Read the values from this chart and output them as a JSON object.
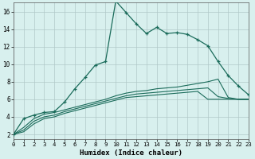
{
  "xlabel": "Humidex (Indice chaleur)",
  "bg_color": "#d8f0ee",
  "grid_color": "#b0c8c8",
  "line_color": "#1a6b5a",
  "x_ticks": [
    0,
    1,
    2,
    3,
    4,
    5,
    6,
    7,
    8,
    9,
    10,
    11,
    12,
    13,
    14,
    15,
    16,
    17,
    18,
    19,
    20,
    21,
    22,
    23
  ],
  "y_ticks": [
    2,
    4,
    6,
    8,
    10,
    12,
    14,
    16
  ],
  "xlim": [
    0,
    23
  ],
  "ylim": [
    1.5,
    17.0
  ],
  "main_line": [
    2.0,
    3.8,
    4.2,
    4.5,
    4.6,
    5.7,
    7.2,
    8.5,
    9.9,
    10.3,
    17.2,
    15.9,
    14.6,
    13.5,
    14.2,
    13.5,
    13.6,
    13.4,
    12.8,
    12.1,
    10.3,
    8.7,
    7.5,
    6.5
  ],
  "line2": [
    2.0,
    2.8,
    3.8,
    4.3,
    4.5,
    4.8,
    5.1,
    5.4,
    5.7,
    6.0,
    6.4,
    6.7,
    6.9,
    7.0,
    7.2,
    7.3,
    7.4,
    7.6,
    7.8,
    8.0,
    8.3,
    6.2,
    6.0,
    6.0
  ],
  "line3": [
    2.0,
    2.5,
    3.5,
    4.0,
    4.2,
    4.6,
    4.9,
    5.2,
    5.5,
    5.8,
    6.1,
    6.4,
    6.6,
    6.7,
    6.8,
    6.9,
    7.0,
    7.1,
    7.2,
    7.3,
    6.3,
    6.1,
    6.0,
    6.0
  ],
  "line4": [
    2.0,
    2.3,
    3.2,
    3.8,
    4.0,
    4.4,
    4.7,
    5.0,
    5.3,
    5.6,
    5.9,
    6.2,
    6.3,
    6.4,
    6.5,
    6.6,
    6.7,
    6.8,
    6.9,
    6.0,
    6.0,
    6.0,
    6.0,
    6.0
  ]
}
